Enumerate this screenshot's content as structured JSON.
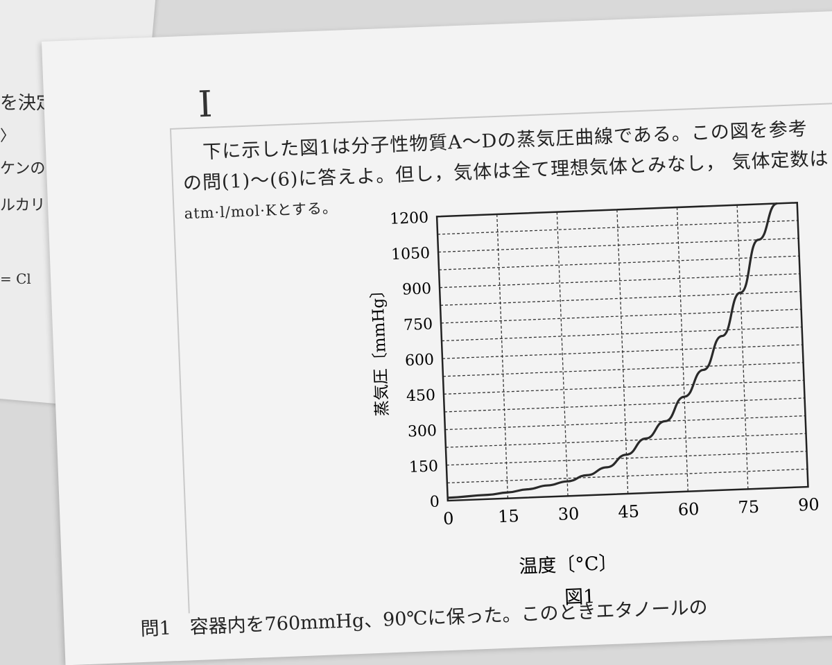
{
  "back_sheet": {
    "lines": [
      "を決定",
      "〉",
      "ケンの",
      "ルカリ",
      "= Cl"
    ]
  },
  "document": {
    "section_mark": "I",
    "paragraph": {
      "line1": "下に示した図1は分子性物質A～Dの蒸気圧曲線である。この図を参考",
      "line1_tail": "気体定数は",
      "line2": "の問(1)～(6)に答えよ。但し，気体は全て理想気体とみなし，",
      "line3": "atm·l/mol·Kとする。"
    },
    "question1": "問1　容器内を760mmHg、90℃に保った。このときエタノールの"
  },
  "chart_data": {
    "type": "line",
    "title": "図1",
    "xlabel": "温度〔°C〕",
    "ylabel": "蒸気圧〔mmHg〕",
    "xlim": [
      0,
      90
    ],
    "ylim": [
      0,
      1200
    ],
    "x_ticks": [
      "0",
      "15",
      "30",
      "45",
      "60",
      "75",
      "90"
    ],
    "y_ticks": [
      "0",
      "150",
      "300",
      "450",
      "600",
      "750",
      "900",
      "1050",
      "1200"
    ],
    "grid": true,
    "series": [
      {
        "x": [
          0,
          10,
          15,
          20,
          25,
          30,
          35,
          40,
          45,
          50,
          55,
          60,
          65,
          70,
          75,
          80,
          85
        ],
        "values": [
          12,
          18,
          25,
          35,
          48,
          62,
          85,
          115,
          165,
          230,
          300,
          400,
          510,
          650,
          830,
          1050,
          1230
        ]
      }
    ]
  }
}
